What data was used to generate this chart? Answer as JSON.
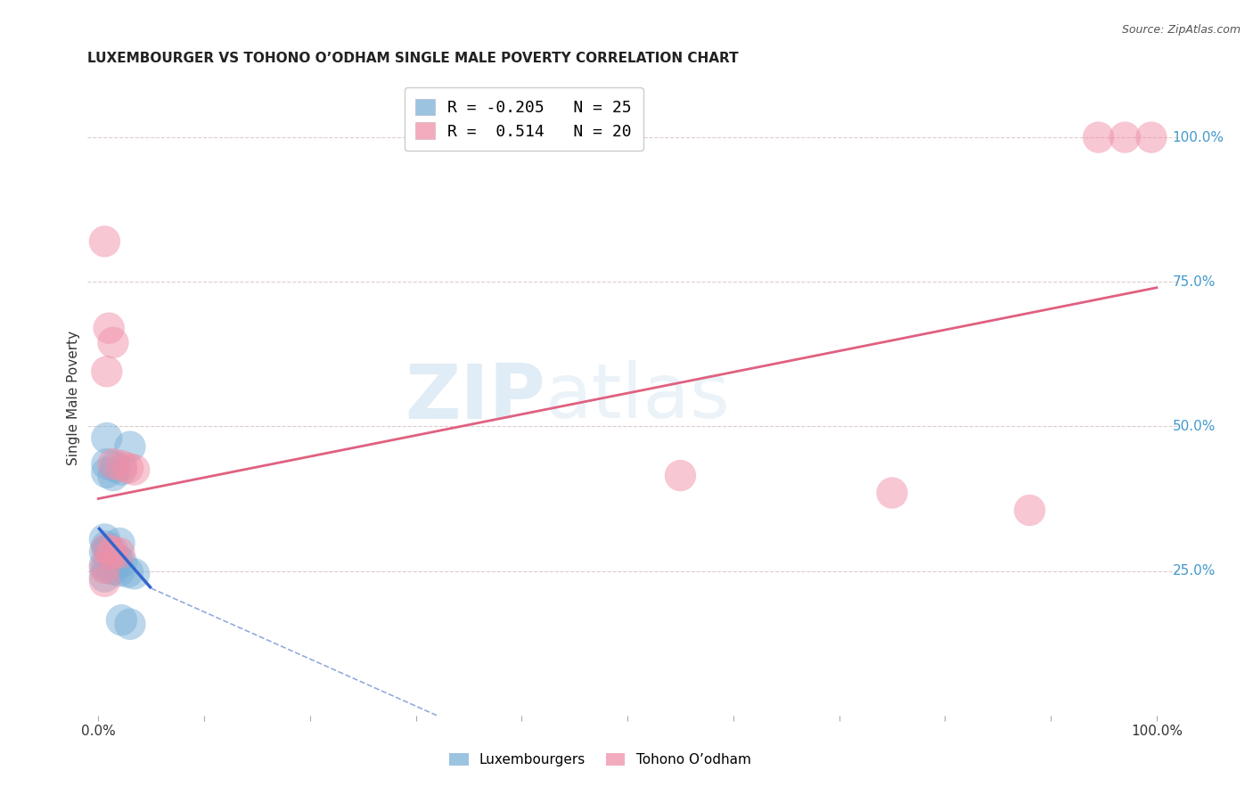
{
  "title": "LUXEMBOURGER VS TOHONO O’ODHAM SINGLE MALE POVERTY CORRELATION CHART",
  "source": "Source: ZipAtlas.com",
  "ylabel": "Single Male Poverty",
  "ytick_labels": [
    "100.0%",
    "75.0%",
    "50.0%",
    "25.0%"
  ],
  "ytick_positions": [
    1.0,
    0.75,
    0.5,
    0.25
  ],
  "legend_entries": [
    {
      "label": "R = -0.205   N = 25",
      "color": "#a8c8e8"
    },
    {
      "label": "R =  0.514   N = 20",
      "color": "#f4a0b5"
    }
  ],
  "legend_bottom": [
    "Luxembourgers",
    "Tohono O’odham"
  ],
  "blue_color": "#7ab0d8",
  "pink_color": "#f090a8",
  "watermark_zip": "ZIP",
  "watermark_atlas": "atlas",
  "blue_points": [
    [
      0.008,
      0.48
    ],
    [
      0.03,
      0.465
    ],
    [
      0.008,
      0.435
    ],
    [
      0.016,
      0.43
    ],
    [
      0.022,
      0.425
    ],
    [
      0.008,
      0.42
    ],
    [
      0.014,
      0.415
    ],
    [
      0.006,
      0.305
    ],
    [
      0.02,
      0.298
    ],
    [
      0.008,
      0.293
    ],
    [
      0.01,
      0.288
    ],
    [
      0.006,
      0.283
    ],
    [
      0.012,
      0.28
    ],
    [
      0.014,
      0.275
    ],
    [
      0.018,
      0.27
    ],
    [
      0.022,
      0.265
    ],
    [
      0.006,
      0.26
    ],
    [
      0.008,
      0.255
    ],
    [
      0.014,
      0.252
    ],
    [
      0.02,
      0.25
    ],
    [
      0.028,
      0.248
    ],
    [
      0.034,
      0.245
    ],
    [
      0.006,
      0.24
    ],
    [
      0.022,
      0.165
    ],
    [
      0.03,
      0.158
    ]
  ],
  "pink_points": [
    [
      0.006,
      0.82
    ],
    [
      0.01,
      0.67
    ],
    [
      0.014,
      0.645
    ],
    [
      0.008,
      0.595
    ],
    [
      0.014,
      0.435
    ],
    [
      0.022,
      0.432
    ],
    [
      0.028,
      0.428
    ],
    [
      0.034,
      0.425
    ],
    [
      0.008,
      0.288
    ],
    [
      0.014,
      0.284
    ],
    [
      0.02,
      0.281
    ],
    [
      0.012,
      0.278
    ],
    [
      0.006,
      0.255
    ],
    [
      0.006,
      0.232
    ],
    [
      0.55,
      0.415
    ],
    [
      0.75,
      0.385
    ],
    [
      0.88,
      0.355
    ],
    [
      0.945,
      1.0
    ],
    [
      0.97,
      1.0
    ],
    [
      0.995,
      1.0
    ]
  ],
  "blue_line_solid": [
    [
      0.0,
      0.325
    ],
    [
      0.05,
      0.22
    ]
  ],
  "blue_line_dashed": [
    [
      0.05,
      0.22
    ],
    [
      0.32,
      0.0
    ]
  ],
  "pink_line": [
    [
      0.0,
      0.375
    ],
    [
      1.0,
      0.74
    ]
  ],
  "xlim": [
    -0.01,
    1.02
  ],
  "ylim": [
    0.0,
    1.1
  ],
  "point_size": 650,
  "bg_color": "#ffffff"
}
